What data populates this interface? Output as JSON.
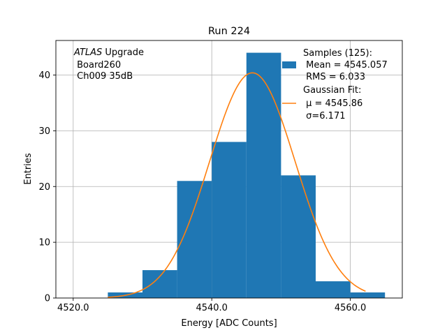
{
  "chart_data": {
    "type": "bar",
    "title": "Run 224",
    "xlabel": "Energy [ADC Counts]",
    "ylabel": "Entries",
    "xlim": [
      4517.5,
      4567.5
    ],
    "ylim": [
      0,
      46.2
    ],
    "x_ticks": [
      4520.0,
      4540.0,
      4560.0
    ],
    "x_tick_labels": [
      "4520.0",
      "4540.0",
      "4560.0"
    ],
    "y_ticks": [
      0,
      10,
      20,
      30,
      40
    ],
    "y_tick_labels": [
      "0",
      "10",
      "20",
      "30",
      "40"
    ],
    "grid": true,
    "histogram": {
      "bin_edges": [
        4525,
        4530,
        4535,
        4540,
        4545,
        4550,
        4555,
        4560,
        4565
      ],
      "counts": [
        1,
        5,
        21,
        28,
        44,
        22,
        3,
        1
      ],
      "color": "#1f77b4"
    },
    "fit": {
      "type": "gaussian",
      "mu": 4545.86,
      "sigma": 6.171,
      "amplitude": 40.4,
      "x_range": [
        4525,
        4562.2
      ],
      "color": "#ff7f0e"
    },
    "annotation": {
      "line1_italic": "ATLAS",
      "line1_rest": " Upgrade",
      "line2": " Board260",
      "line3": " Ch009 35dB"
    },
    "legend": {
      "placement": "top-right",
      "samples": [
        "Samples (125):",
        " Mean = 4545.057",
        " RMS = 6.033"
      ],
      "fit": [
        "Gaussian Fit:",
        " μ = 4545.86",
        " σ=6.171"
      ]
    }
  }
}
